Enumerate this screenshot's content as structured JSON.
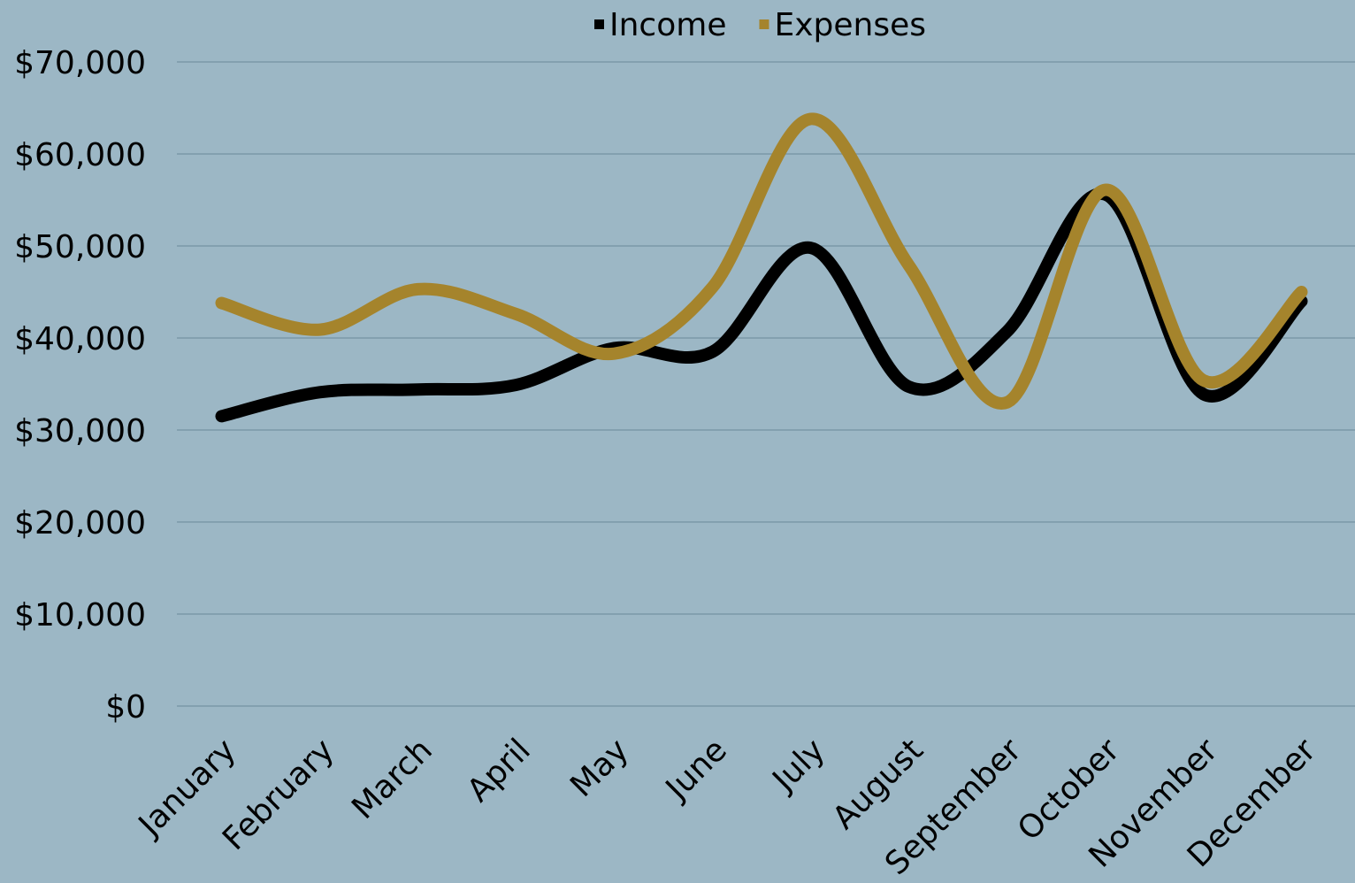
{
  "chart_data": {
    "type": "line",
    "categories": [
      "January",
      "February",
      "March",
      "April",
      "May",
      "June",
      "July",
      "August",
      "September",
      "October",
      "November",
      "December"
    ],
    "series": [
      {
        "name": "Income",
        "color": "#000000",
        "values": [
          31500,
          34100,
          34400,
          34900,
          38900,
          38500,
          49800,
          34700,
          40700,
          55600,
          33900,
          44000
        ]
      },
      {
        "name": "Expenses",
        "color": "#a5842c",
        "values": [
          43800,
          40900,
          45300,
          42600,
          38300,
          45500,
          63800,
          47900,
          33000,
          56100,
          35400,
          45000
        ]
      }
    ],
    "ylim": [
      0,
      70000
    ],
    "yticks": [
      {
        "value": 0,
        "label": "$0"
      },
      {
        "value": 10000,
        "label": "$10,000"
      },
      {
        "value": 20000,
        "label": "$20,000"
      },
      {
        "value": 30000,
        "label": "$30,000"
      },
      {
        "value": 40000,
        "label": "$40,000"
      },
      {
        "value": 50000,
        "label": "$50,000"
      },
      {
        "value": 60000,
        "label": "$60,000"
      },
      {
        "value": 70000,
        "label": "$70,000"
      }
    ],
    "grid": true,
    "legend": "top"
  }
}
